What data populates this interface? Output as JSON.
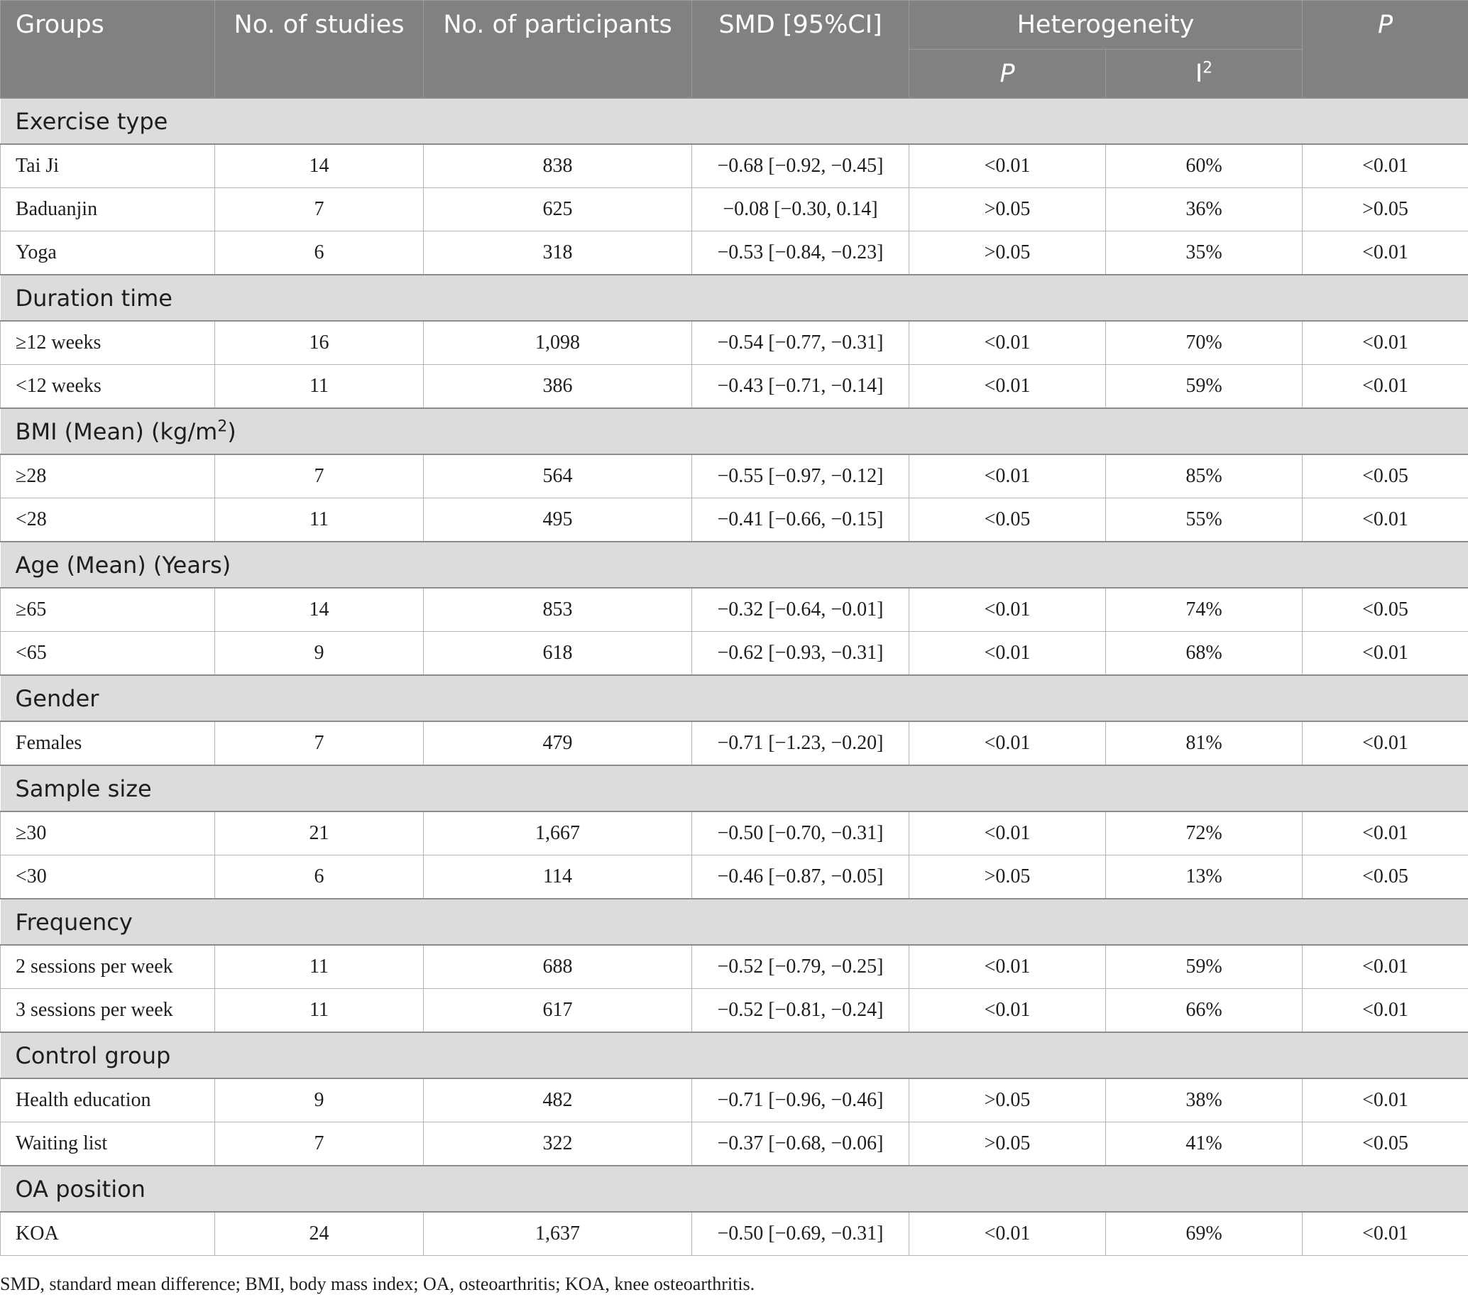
{
  "header": {
    "groups": "Groups",
    "studies": "No. of studies",
    "participants": "No. of participants",
    "smd": "SMD [95%CI]",
    "heterogeneity": "Heterogeneity",
    "het_p": "P",
    "het_i": "I",
    "het_i_sup": "2",
    "p": "P"
  },
  "sections": [
    {
      "label": "Exercise type",
      "rows": [
        {
          "group": "Tai Ji",
          "studies": "14",
          "participants": "838",
          "smd": "−0.68 [−0.92, −0.45]",
          "het_p": "<0.01",
          "i2": "60%",
          "p": "<0.01"
        },
        {
          "group": "Baduanjin",
          "studies": "7",
          "participants": "625",
          "smd": "−0.08 [−0.30, 0.14]",
          "het_p": ">0.05",
          "i2": "36%",
          "p": ">0.05"
        },
        {
          "group": "Yoga",
          "studies": "6",
          "participants": "318",
          "smd": "−0.53 [−0.84, −0.23]",
          "het_p": ">0.05",
          "i2": "35%",
          "p": "<0.01"
        }
      ]
    },
    {
      "label": "Duration time",
      "rows": [
        {
          "group": "≥12 weeks",
          "studies": "16",
          "participants": "1,098",
          "smd": "−0.54 [−0.77, −0.31]",
          "het_p": "<0.01",
          "i2": "70%",
          "p": "<0.01"
        },
        {
          "group": "<12 weeks",
          "studies": "11",
          "participants": "386",
          "smd": "−0.43 [−0.71, −0.14]",
          "het_p": "<0.01",
          "i2": "59%",
          "p": "<0.01"
        }
      ]
    },
    {
      "label": "BMI (Mean) (kg/m",
      "label_sup": "2",
      "label_suffix": ")",
      "rows": [
        {
          "group": "≥28",
          "studies": "7",
          "participants": "564",
          "smd": "−0.55 [−0.97, −0.12]",
          "het_p": "<0.01",
          "i2": "85%",
          "p": "<0.05"
        },
        {
          "group": "<28",
          "studies": "11",
          "participants": "495",
          "smd": "−0.41 [−0.66, −0.15]",
          "het_p": "<0.05",
          "i2": "55%",
          "p": "<0.01"
        }
      ]
    },
    {
      "label": "Age (Mean) (Years)",
      "rows": [
        {
          "group": "≥65",
          "studies": "14",
          "participants": "853",
          "smd": "−0.32 [−0.64, −0.01]",
          "het_p": "<0.01",
          "i2": "74%",
          "p": "<0.05"
        },
        {
          "group": "<65",
          "studies": "9",
          "participants": "618",
          "smd": "−0.62 [−0.93, −0.31]",
          "het_p": "<0.01",
          "i2": "68%",
          "p": "<0.01"
        }
      ]
    },
    {
      "label": "Gender",
      "rows": [
        {
          "group": "Females",
          "studies": "7",
          "participants": "479",
          "smd": "−0.71 [−1.23, −0.20]",
          "het_p": "<0.01",
          "i2": "81%",
          "p": "<0.01"
        }
      ]
    },
    {
      "label": "Sample size",
      "rows": [
        {
          "group": "≥30",
          "studies": "21",
          "participants": "1,667",
          "smd": "−0.50 [−0.70, −0.31]",
          "het_p": "<0.01",
          "i2": "72%",
          "p": "<0.01"
        },
        {
          "group": "<30",
          "studies": "6",
          "participants": "114",
          "smd": "−0.46 [−0.87, −0.05]",
          "het_p": ">0.05",
          "i2": "13%",
          "p": "<0.05"
        }
      ]
    },
    {
      "label": "Frequency",
      "rows": [
        {
          "group": "2 sessions per week",
          "studies": "11",
          "participants": "688",
          "smd": "−0.52 [−0.79, −0.25]",
          "het_p": "<0.01",
          "i2": "59%",
          "p": "<0.01"
        },
        {
          "group": "3 sessions per week",
          "studies": "11",
          "participants": "617",
          "smd": "−0.52 [−0.81, −0.24]",
          "het_p": "<0.01",
          "i2": "66%",
          "p": "<0.01"
        }
      ]
    },
    {
      "label": "Control group",
      "rows": [
        {
          "group": "Health education",
          "studies": "9",
          "participants": "482",
          "smd": "−0.71 [−0.96, −0.46]",
          "het_p": ">0.05",
          "i2": "38%",
          "p": "<0.01"
        },
        {
          "group": "Waiting list",
          "studies": "7",
          "participants": "322",
          "smd": "−0.37 [−0.68, −0.06]",
          "het_p": ">0.05",
          "i2": "41%",
          "p": "<0.05"
        }
      ]
    },
    {
      "label": "OA position",
      "rows": [
        {
          "group": "KOA",
          "studies": "24",
          "participants": "1,637",
          "smd": "−0.50 [−0.69, −0.31]",
          "het_p": "<0.01",
          "i2": "69%",
          "p": "<0.01"
        }
      ]
    }
  ],
  "footnote": "SMD, standard mean difference; BMI, body mass index; OA, osteoarthritis; KOA, knee osteoarthritis."
}
